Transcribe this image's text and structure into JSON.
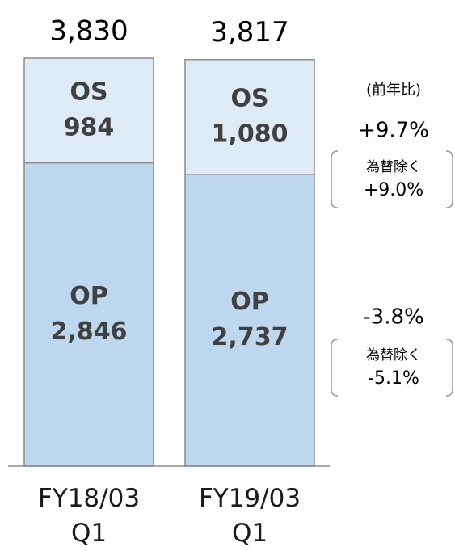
{
  "chart_data": {
    "type": "stacked_bar",
    "categories": [
      "FY18/03 Q1",
      "FY19/03 Q1"
    ],
    "series": [
      {
        "name": "OP",
        "color": "#bdd7ee",
        "values": [
          2846,
          2737
        ],
        "value_labels": [
          "2,846",
          "2,737"
        ]
      },
      {
        "name": "OS",
        "color": "#deebf7",
        "values": [
          984,
          1080
        ],
        "value_labels": [
          "984",
          "1,080"
        ]
      }
    ],
    "totals": [
      3830,
      3817
    ],
    "total_labels": [
      "3,830",
      "3,817"
    ],
    "annotations": {
      "header": "(前年比)",
      "os": {
        "yoy": "+9.7%",
        "note": "為替除く",
        "ex_fx": "+9.0%"
      },
      "op": {
        "yoy": "-3.8%",
        "note": "為替除く",
        "ex_fx": "-5.1%"
      }
    }
  }
}
